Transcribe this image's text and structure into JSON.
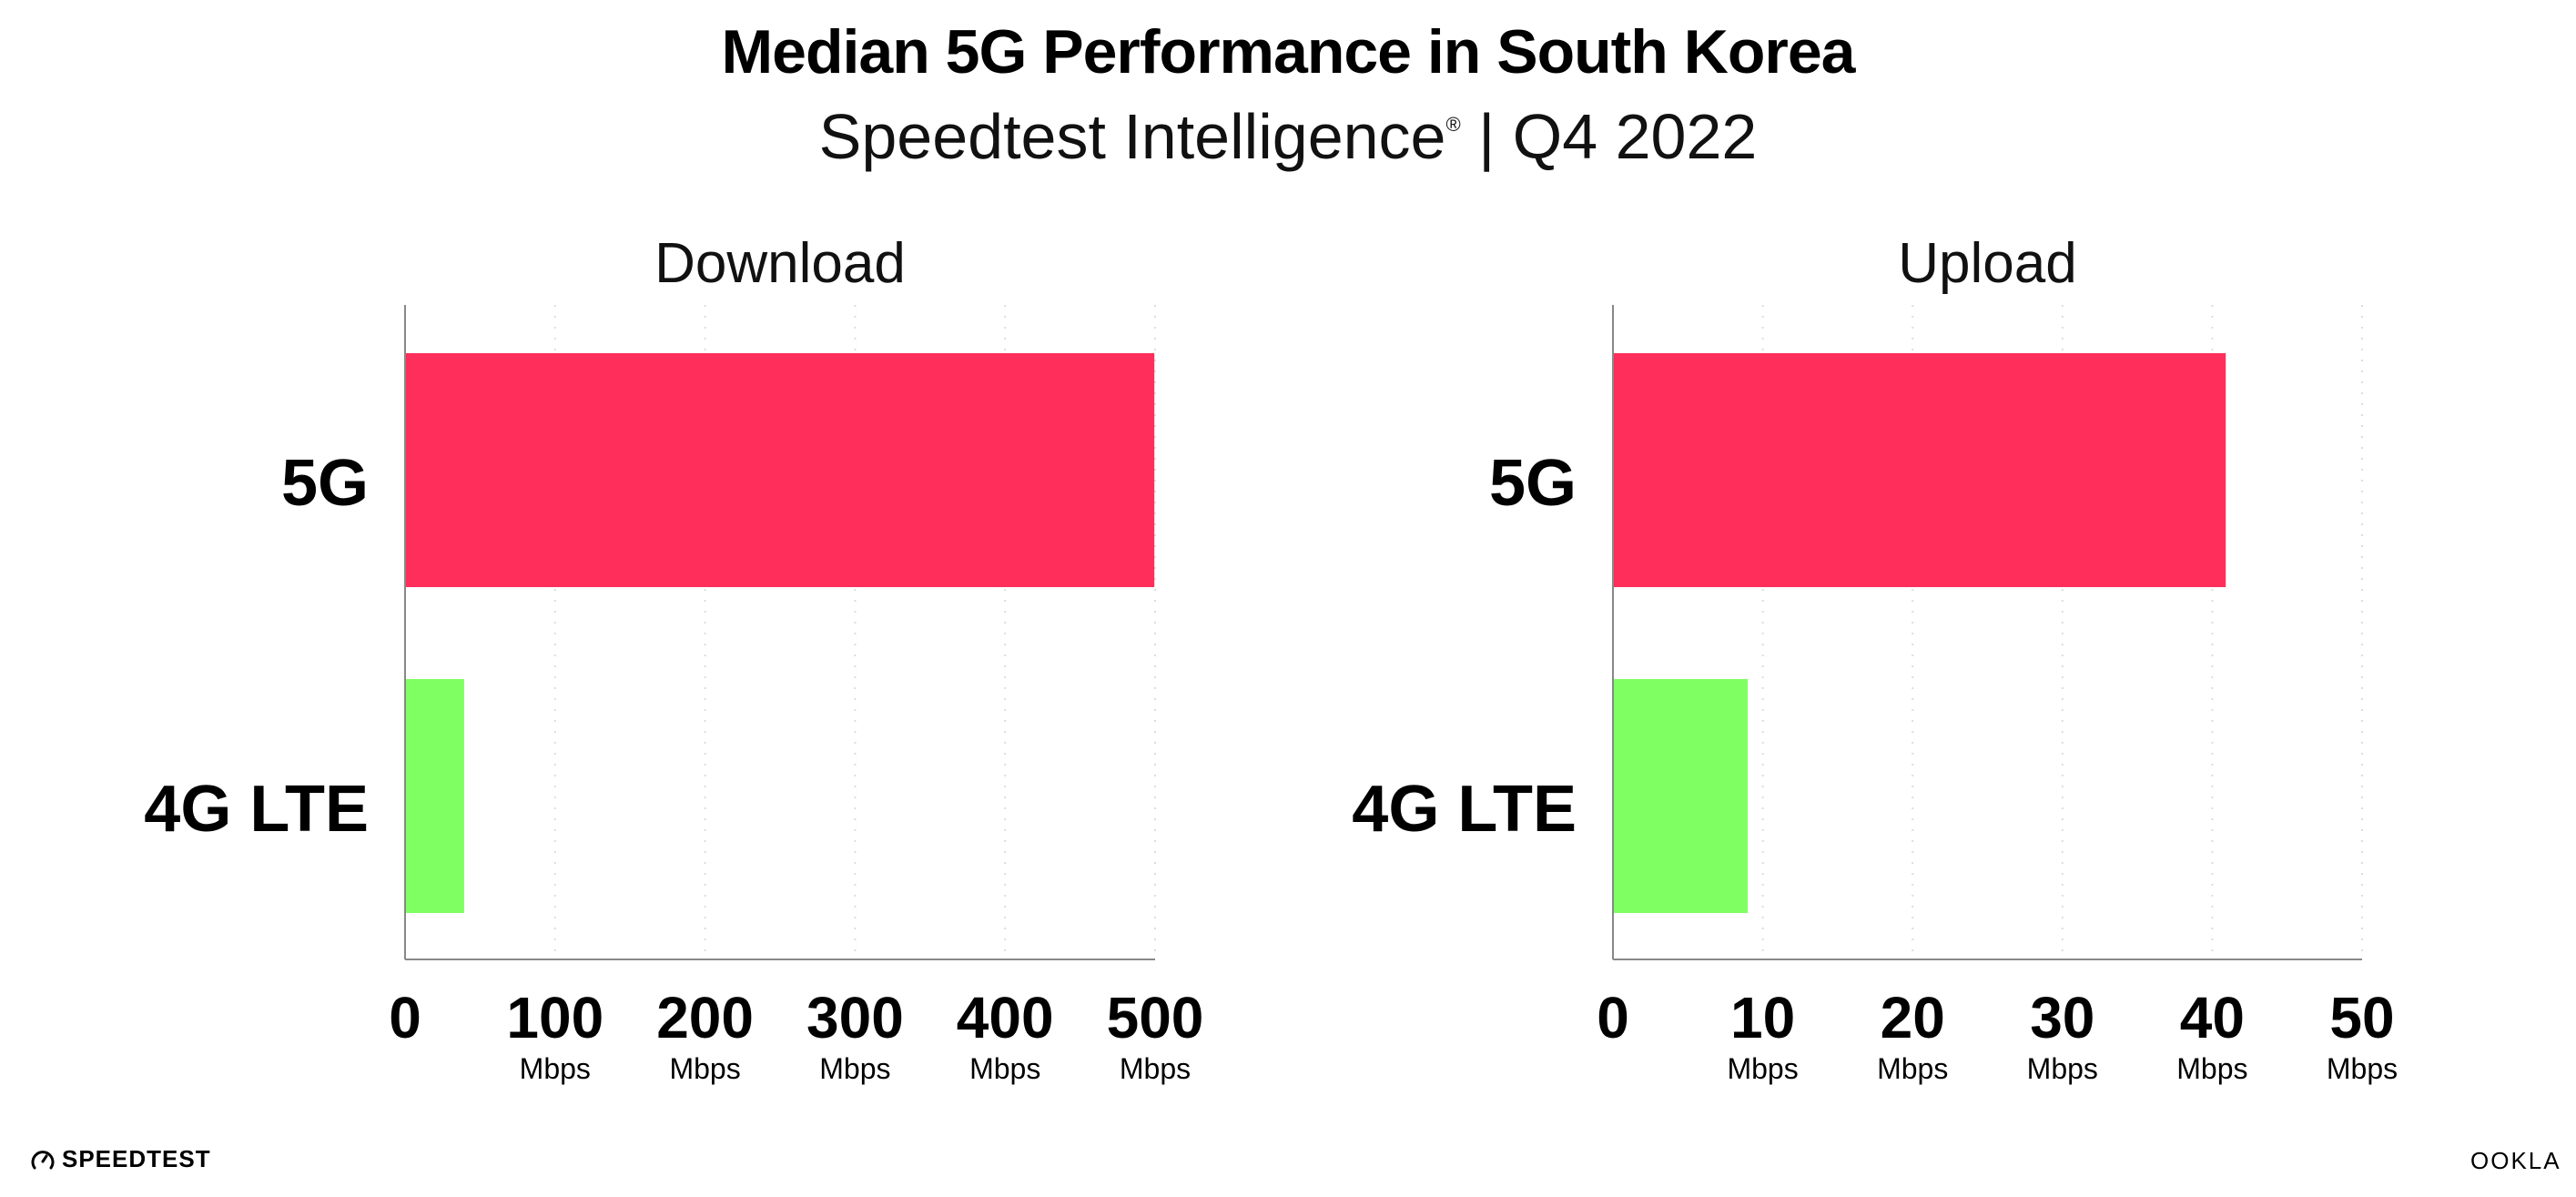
{
  "title": "Median 5G Performance in South Korea",
  "subtitle": "Speedtest Intelligence",
  "subtitle_mark": "®",
  "subtitle_period": "| Q4 2022",
  "colors": {
    "5G": "#ff2e5b",
    "4G LTE": "#80ff62",
    "axis": "#888888",
    "grid": "#dddddd"
  },
  "logos": {
    "left": "SPEEDTEST",
    "right": "OOKLA"
  },
  "chart_data": [
    {
      "type": "bar",
      "orientation": "horizontal",
      "title": "Download",
      "categories": [
        "5G",
        "4G LTE"
      ],
      "values": [
        499.5,
        39.4
      ],
      "xlim": [
        0,
        500
      ],
      "ticks": [
        0,
        100,
        200,
        300,
        400,
        500
      ],
      "tick_labels": [
        "0",
        "100",
        "200",
        "300",
        "400",
        "500"
      ],
      "tick_unit": "Mbps",
      "grid": true
    },
    {
      "type": "bar",
      "orientation": "horizontal",
      "title": "Upload",
      "categories": [
        "5G",
        "4G LTE"
      ],
      "values": [
        40.9,
        9.0
      ],
      "xlim": [
        0,
        50
      ],
      "ticks": [
        0,
        10,
        20,
        30,
        40,
        50
      ],
      "tick_labels": [
        "0",
        "10",
        "20",
        "30",
        "40",
        "50"
      ],
      "tick_unit": "Mbps",
      "grid": true
    }
  ]
}
